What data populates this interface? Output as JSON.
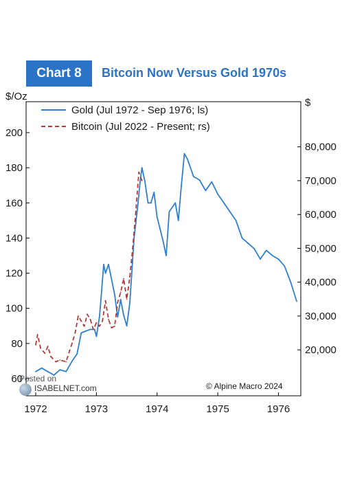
{
  "header": {
    "badge": "Chart 8",
    "title": "Bitcoin Now Versus Gold 1970s"
  },
  "chart_data": {
    "type": "line",
    "left_axis": {
      "unit": "$/Oz",
      "ylim": [
        60,
        200
      ],
      "ticks": [
        60,
        80,
        100,
        120,
        140,
        160,
        180,
        200
      ]
    },
    "right_axis": {
      "unit": "$",
      "ylim": [
        11500,
        84200
      ],
      "ticks": [
        20000,
        30000,
        40000,
        50000,
        60000,
        70000,
        80000
      ],
      "tick_labels": [
        "20,000",
        "30,000",
        "40,000",
        "50,000",
        "60,000",
        "70,000",
        "80,000"
      ]
    },
    "x_axis": {
      "xlim": [
        1972.0,
        1976.3
      ],
      "ticks": [
        1972,
        1973,
        1974,
        1975,
        1976
      ]
    },
    "grid": false,
    "legend_position": "top-left",
    "series": [
      {
        "name": "Gold (Jul 1972 - Sep 1976; ls)",
        "axis": "left",
        "color": "#2e7fd0",
        "style": "solid",
        "x": [
          1972.0,
          1972.1,
          1972.2,
          1972.3,
          1972.4,
          1972.5,
          1972.6,
          1972.68,
          1972.75,
          1972.82,
          1972.9,
          1972.97,
          1973.0,
          1973.05,
          1973.08,
          1973.12,
          1973.15,
          1973.2,
          1973.3,
          1973.35,
          1973.4,
          1973.45,
          1973.5,
          1973.55,
          1973.62,
          1973.68,
          1973.72,
          1973.75,
          1973.8,
          1973.85,
          1973.9,
          1973.95,
          1974.0,
          1974.05,
          1974.1,
          1974.15,
          1974.2,
          1974.3,
          1974.35,
          1974.4,
          1974.45,
          1974.5,
          1974.6,
          1974.7,
          1974.8,
          1974.9,
          1975.0,
          1975.1,
          1975.2,
          1975.3,
          1975.4,
          1975.5,
          1975.6,
          1975.7,
          1975.8,
          1975.9,
          1976.0,
          1976.1,
          1976.2,
          1976.3
        ],
        "values": [
          64,
          66,
          64,
          62,
          65,
          64,
          70,
          74,
          86,
          87,
          88,
          88,
          84,
          95,
          107,
          125,
          120,
          125,
          108,
          95,
          105,
          96,
          90,
          103,
          140,
          158,
          172,
          180,
          172,
          160,
          160,
          166,
          152,
          145,
          138,
          130,
          155,
          160,
          150,
          170,
          188,
          185,
          175,
          173,
          167,
          172,
          165,
          160,
          155,
          150,
          140,
          137,
          134,
          128,
          133,
          130,
          128,
          124,
          115,
          104
        ]
      },
      {
        "name": "Bitcoin (Jul 2022 - Present; rs)",
        "axis": "right",
        "color": "#b23a3a",
        "style": "dashed",
        "x": [
          1972.0,
          1972.03,
          1972.08,
          1972.15,
          1972.2,
          1972.25,
          1972.33,
          1972.4,
          1972.5,
          1972.6,
          1972.65,
          1972.7,
          1972.75,
          1972.8,
          1972.85,
          1972.9,
          1972.95,
          1973.0,
          1973.05,
          1973.1,
          1973.15,
          1973.2,
          1973.25,
          1973.3,
          1973.35,
          1973.4,
          1973.45,
          1973.5,
          1973.55,
          1973.6,
          1973.65,
          1973.7,
          1973.75
        ],
        "values": [
          21500,
          24500,
          20500,
          19000,
          21000,
          18000,
          16500,
          17000,
          16500,
          22000,
          25000,
          30000,
          28500,
          27000,
          30500,
          29000,
          26000,
          28000,
          27000,
          28500,
          34500,
          29000,
          26500,
          27000,
          34000,
          37000,
          41000,
          35000,
          41500,
          50500,
          61000,
          72500,
          70000
        ]
      }
    ]
  },
  "credit": "© Alpine Macro 2024",
  "watermark": {
    "line1": "Posted on",
    "brand": "ISABELNET.com"
  }
}
